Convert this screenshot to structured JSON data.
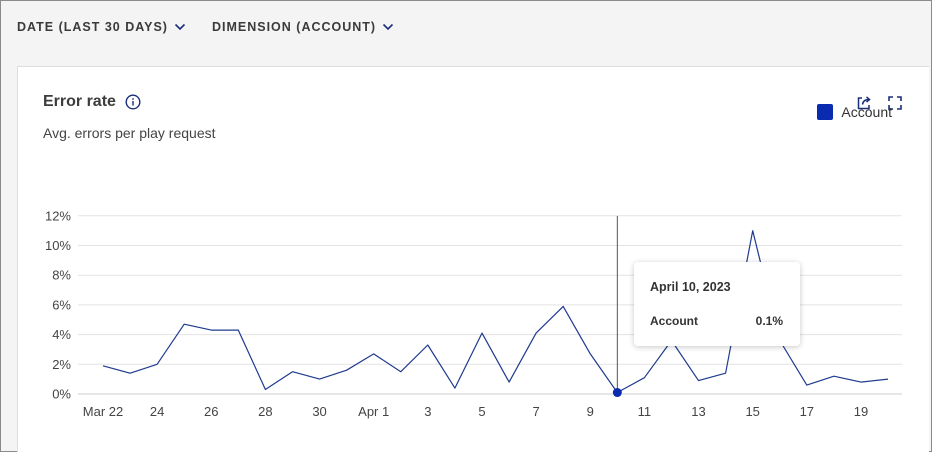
{
  "filters": [
    {
      "label": "DATE (LAST 30 DAYS)"
    },
    {
      "label": "DIMENSION (ACCOUNT)"
    }
  ],
  "card": {
    "title": "Error rate",
    "subtitle": "Avg. errors per play request"
  },
  "colors": {
    "series": "#1f3a8f",
    "legend": "#0a2bb0",
    "grid": "#e3e3e3",
    "axis_text": "#444444",
    "icon": "#1a2f7a"
  },
  "icons": [
    "chevron-down-icon",
    "info-icon",
    "share-icon",
    "expand-icon"
  ],
  "tooltip": {
    "date": "April 10, 2023",
    "series": "Account",
    "value": "0.1%"
  },
  "chart_data": {
    "type": "line",
    "title": "Error rate",
    "subtitle": "Avg. errors per play request",
    "xlabel": "",
    "ylabel": "",
    "x": [
      "Mar 22",
      "Mar 23",
      "Mar 24",
      "Mar 25",
      "Mar 26",
      "Mar 27",
      "Mar 28",
      "Mar 29",
      "Mar 30",
      "Mar 31",
      "Apr 1",
      "Apr 2",
      "Apr 3",
      "Apr 4",
      "Apr 5",
      "Apr 6",
      "Apr 7",
      "Apr 8",
      "Apr 9",
      "Apr 10",
      "Apr 11",
      "Apr 12",
      "Apr 13",
      "Apr 14",
      "Apr 15",
      "Apr 16",
      "Apr 17",
      "Apr 18",
      "Apr 19",
      "Apr 20"
    ],
    "x_tick_labels": [
      "Mar 22",
      "24",
      "26",
      "28",
      "30",
      "Apr 1",
      "3",
      "5",
      "7",
      "9",
      "11",
      "13",
      "15",
      "17",
      "19"
    ],
    "y_tick_labels": [
      "0%",
      "2%",
      "4%",
      "6%",
      "8%",
      "10%",
      "12%"
    ],
    "ylim": [
      0,
      12
    ],
    "grid": true,
    "legend_position": "top-right",
    "series": [
      {
        "name": "Account",
        "values": [
          1.9,
          1.4,
          2.0,
          4.7,
          4.3,
          4.3,
          0.3,
          1.5,
          1.0,
          1.6,
          2.7,
          1.5,
          3.3,
          0.4,
          4.1,
          0.8,
          4.1,
          5.9,
          2.7,
          0.1,
          1.1,
          3.6,
          0.9,
          1.4,
          11.0,
          3.6,
          0.6,
          1.2,
          0.8,
          1.0
        ]
      }
    ],
    "highlight": {
      "x": "Apr 10",
      "value": 0.1
    }
  }
}
